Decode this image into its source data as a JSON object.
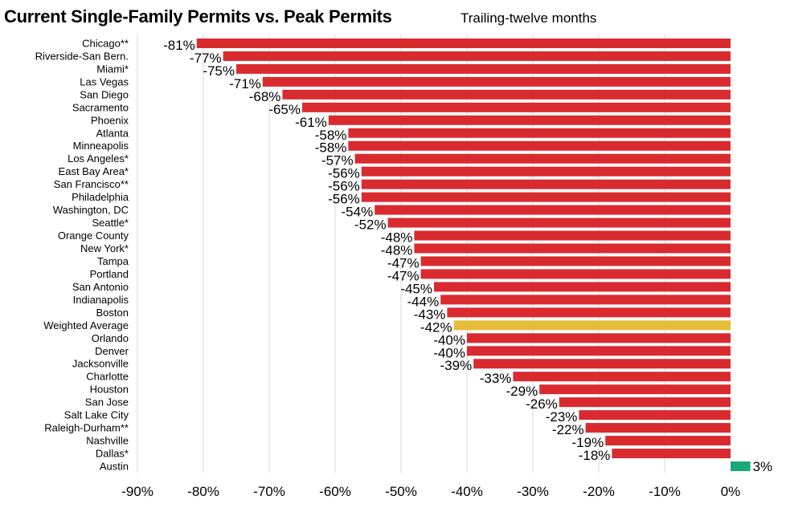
{
  "chart_data": {
    "type": "bar",
    "orientation": "horizontal",
    "title": "Current Single-Family Permits vs. Peak Permits",
    "subtitle": "Trailing-twelve months",
    "categories": [
      "Chicago**",
      "Riverside-San Bern.",
      "Miami*",
      "Las Vegas",
      "San Diego",
      "Sacramento",
      "Phoenix",
      "Atlanta",
      "Minneapolis",
      "Los Angeles*",
      "East Bay Area*",
      "San Francisco**",
      "Philadelphia",
      "Washington, DC",
      "Seattle*",
      "Orange County",
      "New York*",
      "Tampa",
      "Portland",
      "San Antonio",
      "Indianapolis",
      "Boston",
      "Weighted Average",
      "Orlando",
      "Denver",
      "Jacksonville",
      "Charlotte",
      "Houston",
      "San Jose",
      "Salt Lake City",
      "Raleigh-Durham**",
      "Nashville",
      "Dallas*",
      "Austin"
    ],
    "values": [
      -81,
      -77,
      -75,
      -71,
      -68,
      -65,
      -61,
      -58,
      -58,
      -57,
      -56,
      -56,
      -56,
      -54,
      -52,
      -48,
      -48,
      -47,
      -47,
      -45,
      -44,
      -43,
      -42,
      -40,
      -40,
      -39,
      -33,
      -29,
      -26,
      -23,
      -22,
      -19,
      -18,
      3
    ],
    "value_labels": [
      "-81%",
      "-77%",
      "-75%",
      "-71%",
      "-68%",
      "-65%",
      "-61%",
      "-58%",
      "-58%",
      "-57%",
      "-56%",
      "-56%",
      "-56%",
      "-54%",
      "-52%",
      "-48%",
      "-48%",
      "-47%",
      "-47%",
      "-45%",
      "-44%",
      "-43%",
      "-42%",
      "-40%",
      "-40%",
      "-39%",
      "-33%",
      "-29%",
      "-26%",
      "-23%",
      "-22%",
      "-19%",
      "-18%",
      "3%"
    ],
    "xlim": [
      -90,
      3
    ],
    "xticks": [
      -90,
      -80,
      -70,
      -60,
      -50,
      -40,
      -30,
      -20,
      -10,
      0
    ],
    "xtick_labels": [
      "-90%",
      "-80%",
      "-70%",
      "-60%",
      "-50%",
      "-40%",
      "-30%",
      "-20%",
      "-10%",
      "0%"
    ],
    "grid": "vertical",
    "legend": "none",
    "colors": {
      "negative": "#d92b2f",
      "average": "#e6bd3a",
      "positive": "#1aa87a",
      "grid": "#d9d9d9"
    }
  }
}
